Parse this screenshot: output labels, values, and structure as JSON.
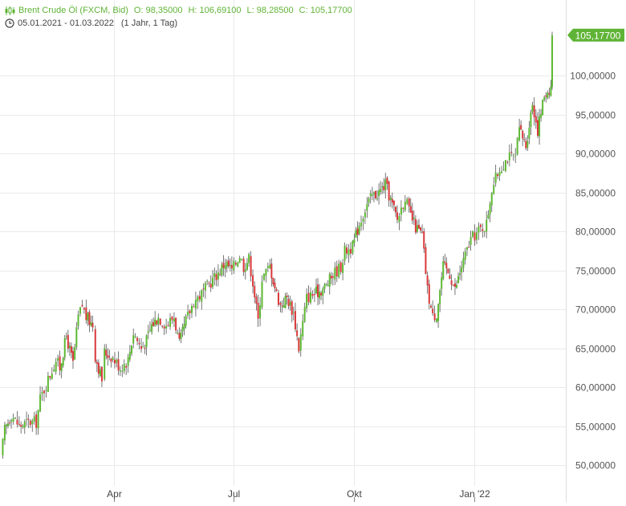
{
  "header": {
    "instrument": "Brent Crude Öl (FXCM, Bid)",
    "open": "O: 98,35000",
    "high": "H: 106,69100",
    "low": "L: 98,28500",
    "close": "C: 105,17700",
    "date_range": "05.01.2021 - 01.03.2022",
    "interval": "(1 Jahr, 1 Tag)"
  },
  "colors": {
    "up": "#5cb832",
    "down": "#d9383a",
    "wick": "#555555",
    "grid": "#eaeaea",
    "label_bg": "#5fb336"
  },
  "chart_data": {
    "type": "candlestick",
    "title": "Brent Crude Öl (FXCM, Bid)",
    "xlabel": "",
    "ylabel": "",
    "ylim": [
      45.5,
      110
    ],
    "y_ticks": [
      50,
      55,
      60,
      65,
      70,
      75,
      80,
      85,
      90,
      95,
      100
    ],
    "y_tick_labels": [
      "50,00000",
      "55,00000",
      "60,00000",
      "65,00000",
      "70,00000",
      "75,00000",
      "80,00000",
      "85,00000",
      "90,00000",
      "95,00000",
      "100,00000"
    ],
    "x_ticks": [
      {
        "label": "Apr",
        "date": "2021-04-01"
      },
      {
        "label": "Jul",
        "date": "2021-07-01"
      },
      {
        "label": "Okt",
        "date": "2021-10-01"
      },
      {
        "label": "Jan '22",
        "date": "2022-01-01"
      }
    ],
    "last_price_label": "105,17700",
    "grid": true,
    "series": [
      {
        "columns": [
          "date",
          "close"
        ],
        "values": [
          [
            "2021-01-05",
            51.0
          ],
          [
            "2021-01-08",
            54.5
          ],
          [
            "2021-01-13",
            56.5
          ],
          [
            "2021-01-19",
            55.0
          ],
          [
            "2021-01-26",
            55.5
          ],
          [
            "2021-02-01",
            55.5
          ],
          [
            "2021-02-04",
            58.5
          ],
          [
            "2021-02-10",
            61.0
          ],
          [
            "2021-02-16",
            63.5
          ],
          [
            "2021-02-19",
            62.5
          ],
          [
            "2021-02-24",
            66.5
          ],
          [
            "2021-03-01",
            63.0
          ],
          [
            "2021-03-05",
            69.0
          ],
          [
            "2021-03-08",
            70.5
          ],
          [
            "2021-03-11",
            69.0
          ],
          [
            "2021-03-16",
            68.0
          ],
          [
            "2021-03-18",
            64.0
          ],
          [
            "2021-03-23",
            61.0
          ],
          [
            "2021-03-25",
            64.5
          ],
          [
            "2021-03-30",
            64.0
          ],
          [
            "2021-04-06",
            62.5
          ],
          [
            "2021-04-12",
            63.5
          ],
          [
            "2021-04-16",
            67.0
          ],
          [
            "2021-04-22",
            65.0
          ],
          [
            "2021-04-26",
            66.0
          ],
          [
            "2021-04-30",
            68.0
          ],
          [
            "2021-05-05",
            69.0
          ],
          [
            "2021-05-11",
            68.0
          ],
          [
            "2021-05-17",
            69.0
          ],
          [
            "2021-05-21",
            65.5
          ],
          [
            "2021-05-26",
            68.5
          ],
          [
            "2021-06-01",
            71.0
          ],
          [
            "2021-06-07",
            72.0
          ],
          [
            "2021-06-14",
            73.5
          ],
          [
            "2021-06-21",
            75.0
          ],
          [
            "2021-06-25",
            76.0
          ],
          [
            "2021-06-30",
            75.0
          ],
          [
            "2021-07-06",
            77.0
          ],
          [
            "2021-07-09",
            75.5
          ],
          [
            "2021-07-13",
            76.5
          ],
          [
            "2021-07-16",
            73.5
          ],
          [
            "2021-07-20",
            68.5
          ],
          [
            "2021-07-23",
            74.0
          ],
          [
            "2021-07-29",
            75.5
          ],
          [
            "2021-08-03",
            72.0
          ],
          [
            "2021-08-06",
            70.5
          ],
          [
            "2021-08-11",
            71.5
          ],
          [
            "2021-08-16",
            69.5
          ],
          [
            "2021-08-20",
            65.0
          ],
          [
            "2021-08-26",
            71.5
          ],
          [
            "2021-09-01",
            72.0
          ],
          [
            "2021-09-06",
            72.5
          ],
          [
            "2021-09-10",
            73.0
          ],
          [
            "2021-09-15",
            74.5
          ],
          [
            "2021-09-21",
            75.5
          ],
          [
            "2021-09-24",
            77.5
          ],
          [
            "2021-09-30",
            78.0
          ],
          [
            "2021-10-05",
            81.0
          ],
          [
            "2021-10-11",
            83.5
          ],
          [
            "2021-10-15",
            84.5
          ],
          [
            "2021-10-20",
            85.0
          ],
          [
            "2021-10-25",
            86.0
          ],
          [
            "2021-10-29",
            84.0
          ],
          [
            "2021-11-03",
            81.5
          ],
          [
            "2021-11-09",
            84.5
          ],
          [
            "2021-11-12",
            82.5
          ],
          [
            "2021-11-17",
            80.5
          ],
          [
            "2021-11-22",
            79.5
          ],
          [
            "2021-11-26",
            72.5
          ],
          [
            "2021-11-30",
            69.0
          ],
          [
            "2021-12-03",
            69.5
          ],
          [
            "2021-12-08",
            75.5
          ],
          [
            "2021-12-13",
            74.5
          ],
          [
            "2021-12-17",
            72.5
          ],
          [
            "2021-12-22",
            75.5
          ],
          [
            "2021-12-29",
            79.0
          ],
          [
            "2022-01-04",
            80.0
          ],
          [
            "2022-01-10",
            81.0
          ],
          [
            "2022-01-14",
            85.5
          ],
          [
            "2022-01-20",
            88.0
          ],
          [
            "2022-01-26",
            89.5
          ],
          [
            "2022-02-01",
            89.5
          ],
          [
            "2022-02-04",
            93.0
          ],
          [
            "2022-02-09",
            91.0
          ],
          [
            "2022-02-14",
            96.5
          ],
          [
            "2022-02-18",
            93.0
          ],
          [
            "2022-02-23",
            97.5
          ],
          [
            "2022-02-28",
            98.5
          ],
          [
            "2022-03-01",
            105.177
          ]
        ]
      }
    ]
  }
}
